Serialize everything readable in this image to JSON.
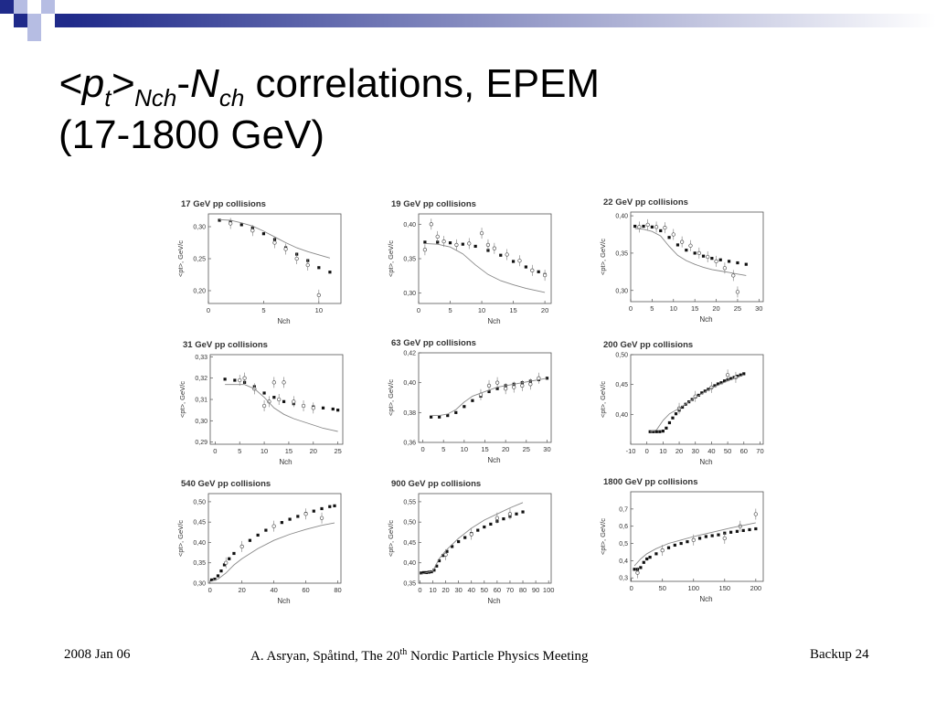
{
  "slide": {
    "title_open": "<",
    "title_p": "p",
    "title_sub_t": "t",
    "title_gt": ">",
    "title_sub_nch": "Nch",
    "title_dash": "-",
    "title_n": "N",
    "title_sub_ch": "ch",
    "title_rest": " correlations, EPEM",
    "title_line2": "(17-1800 GeV)"
  },
  "footer": {
    "date": "2008 Jan 06",
    "authors_a": "A. Asryan, Spåtind, The 20",
    "authors_sup": "th",
    "authors_b": " Nordic Particle Physics Meeting",
    "backup": "Backup 24"
  },
  "colors": {
    "accent": "#1f2a8a",
    "accent_light": "#b6bde3",
    "model": "#888888"
  },
  "chart_data": [
    {
      "type": "scatter",
      "title": "17 GeV pp collisions",
      "ylabel": "<pt>, GeV/c",
      "xlabel": "Nch",
      "xlim": [
        0,
        12
      ],
      "ylim": [
        0.18,
        0.32
      ],
      "xticks": [
        0,
        5,
        10
      ],
      "yticks": [
        0.2,
        0.25,
        0.3
      ],
      "yticklabels": [
        "0,20",
        "0,25",
        "0,30"
      ],
      "series": [
        {
          "kind": "dots",
          "x": [
            1,
            2,
            3,
            4,
            5,
            6,
            7,
            8,
            9,
            10,
            11
          ],
          "y": [
            0.31,
            0.307,
            0.303,
            0.298,
            0.289,
            0.28,
            0.267,
            0.257,
            0.247,
            0.236,
            0.229
          ]
        },
        {
          "kind": "points",
          "x": [
            2,
            4,
            6,
            7,
            8,
            9,
            10
          ],
          "y": [
            0.305,
            0.294,
            0.275,
            0.265,
            0.25,
            0.24,
            0.193
          ]
        },
        {
          "kind": "line",
          "x": [
            1,
            2,
            3,
            4,
            5,
            6,
            7,
            8,
            9,
            10,
            11
          ],
          "y": [
            0.311,
            0.31,
            0.306,
            0.301,
            0.293,
            0.284,
            0.275,
            0.267,
            0.261,
            0.256,
            0.251
          ]
        }
      ]
    },
    {
      "type": "scatter",
      "title": "19 GeV pp collisions",
      "ylabel": "<pt>, GeV/c",
      "xlabel": "Nch",
      "xlim": [
        0,
        21
      ],
      "ylim": [
        0.285,
        0.415
      ],
      "xticks": [
        0,
        5,
        10,
        15,
        20
      ],
      "yticks": [
        0.3,
        0.35,
        0.4
      ],
      "yticklabels": [
        "0,30",
        "0,35",
        "0,40"
      ],
      "series": [
        {
          "kind": "dots",
          "x": [
            1,
            3,
            5,
            7,
            9,
            11,
            13,
            15,
            17,
            19,
            20
          ],
          "y": [
            0.374,
            0.374,
            0.373,
            0.371,
            0.368,
            0.362,
            0.355,
            0.346,
            0.338,
            0.331,
            0.327
          ]
        },
        {
          "kind": "points",
          "x": [
            1,
            2,
            3,
            4,
            6,
            8,
            10,
            11,
            12,
            14,
            16,
            18,
            20
          ],
          "y": [
            0.363,
            0.4,
            0.382,
            0.375,
            0.37,
            0.372,
            0.387,
            0.37,
            0.365,
            0.356,
            0.347,
            0.333,
            0.326
          ]
        },
        {
          "kind": "line",
          "x": [
            1,
            3,
            5,
            7,
            9,
            11,
            13,
            15,
            17,
            19,
            20
          ],
          "y": [
            0.372,
            0.371,
            0.367,
            0.357,
            0.341,
            0.327,
            0.318,
            0.312,
            0.307,
            0.303,
            0.301
          ]
        }
      ]
    },
    {
      "type": "scatter",
      "title": "22 GeV pp collisions",
      "ylabel": "<pt>, GeV/c",
      "xlabel": "Nch",
      "xlim": [
        0,
        31
      ],
      "ylim": [
        0.285,
        0.405
      ],
      "xticks": [
        0,
        5,
        10,
        15,
        20,
        25,
        30
      ],
      "yticks": [
        0.3,
        0.35,
        0.4
      ],
      "yticklabels": [
        "0,30",
        "0,35",
        "0,40"
      ],
      "series": [
        {
          "kind": "dots",
          "x": [
            1,
            3,
            5,
            7,
            9,
            11,
            13,
            15,
            17,
            19,
            21,
            23,
            25,
            27
          ],
          "y": [
            0.386,
            0.386,
            0.385,
            0.38,
            0.371,
            0.361,
            0.354,
            0.35,
            0.346,
            0.343,
            0.341,
            0.339,
            0.337,
            0.335
          ]
        },
        {
          "kind": "points",
          "x": [
            2,
            4,
            6,
            8,
            10,
            12,
            14,
            16,
            18,
            20,
            22,
            24,
            25
          ],
          "y": [
            0.385,
            0.388,
            0.385,
            0.384,
            0.375,
            0.365,
            0.36,
            0.35,
            0.345,
            0.339,
            0.33,
            0.32,
            0.298
          ]
        },
        {
          "kind": "line",
          "x": [
            1,
            3,
            5,
            7,
            9,
            11,
            13,
            15,
            17,
            19,
            21,
            23,
            25,
            27
          ],
          "y": [
            0.383,
            0.382,
            0.379,
            0.373,
            0.359,
            0.347,
            0.34,
            0.335,
            0.331,
            0.328,
            0.326,
            0.324,
            0.322,
            0.32
          ]
        }
      ]
    },
    {
      "type": "scatter",
      "title": "31 GeV pp collisions",
      "ylabel": "<pt>, GeV/c",
      "xlabel": "Nch",
      "xlim": [
        -1,
        26
      ],
      "ylim": [
        0.289,
        0.331
      ],
      "xticks": [
        0,
        5,
        10,
        15,
        20,
        25
      ],
      "yticks": [
        0.29,
        0.3,
        0.31,
        0.32,
        0.33
      ],
      "yticklabels": [
        "0,29",
        "0,30",
        "0,31",
        "0,32",
        "0,33"
      ],
      "series": [
        {
          "kind": "dots",
          "x": [
            2,
            4,
            6,
            8,
            10,
            12,
            14,
            16,
            18,
            20,
            22,
            24,
            25
          ],
          "y": [
            0.3195,
            0.319,
            0.318,
            0.316,
            0.313,
            0.311,
            0.309,
            0.308,
            0.307,
            0.3065,
            0.306,
            0.3055,
            0.305
          ]
        },
        {
          "kind": "points",
          "x": [
            5,
            6,
            8,
            10,
            11,
            12,
            13,
            14,
            16,
            18,
            20
          ],
          "y": [
            0.319,
            0.32,
            0.315,
            0.307,
            0.309,
            0.318,
            0.31,
            0.318,
            0.309,
            0.307,
            0.306
          ]
        },
        {
          "kind": "line",
          "x": [
            2,
            4,
            6,
            8,
            10,
            12,
            14,
            16,
            18,
            20,
            22,
            24,
            25
          ],
          "y": [
            0.317,
            0.317,
            0.317,
            0.315,
            0.311,
            0.306,
            0.303,
            0.301,
            0.2995,
            0.298,
            0.2965,
            0.2955,
            0.295
          ]
        }
      ]
    },
    {
      "type": "scatter",
      "title": "63 GeV pp collisions",
      "ylabel": "<pt>, GeV/c",
      "xlabel": "Nch",
      "xlim": [
        -1,
        31
      ],
      "ylim": [
        0.36,
        0.42
      ],
      "xticks": [
        0,
        5,
        10,
        15,
        20,
        25,
        30
      ],
      "yticks": [
        0.36,
        0.38,
        0.4,
        0.42
      ],
      "yticklabels": [
        "0,36",
        "0,38",
        "0,40",
        "0,42"
      ],
      "series": [
        {
          "kind": "dots",
          "x": [
            2,
            4,
            6,
            8,
            10,
            12,
            14,
            16,
            18,
            20,
            22,
            24,
            26,
            28,
            30
          ],
          "y": [
            0.377,
            0.377,
            0.378,
            0.38,
            0.384,
            0.388,
            0.391,
            0.394,
            0.396,
            0.398,
            0.399,
            0.4,
            0.401,
            0.402,
            0.403
          ]
        },
        {
          "kind": "points",
          "x": [
            14,
            16,
            18,
            20,
            22,
            24,
            26,
            28
          ],
          "y": [
            0.392,
            0.398,
            0.4,
            0.396,
            0.397,
            0.398,
            0.399,
            0.403
          ]
        },
        {
          "kind": "line",
          "x": [
            2,
            4,
            6,
            8,
            10,
            12,
            14,
            16,
            18,
            20,
            22,
            24,
            26,
            28,
            30
          ],
          "y": [
            0.378,
            0.378,
            0.379,
            0.382,
            0.387,
            0.391,
            0.393,
            0.395,
            0.397,
            0.398,
            0.399,
            0.4,
            0.401,
            0.402,
            0.403
          ]
        }
      ]
    },
    {
      "type": "scatter",
      "title": "200 GeV pp collisions",
      "ylabel": "<pt>, GeV/c",
      "xlabel": "Nch",
      "xlim": [
        -10,
        72
      ],
      "ylim": [
        0.35,
        0.5
      ],
      "xticks": [
        -10,
        0,
        10,
        20,
        30,
        40,
        50,
        60,
        70
      ],
      "yticks": [
        0.4,
        0.45,
        0.5
      ],
      "yticklabels": [
        "0,40",
        "0,45",
        "0,50"
      ],
      "series": [
        {
          "kind": "dots",
          "x": [
            2,
            4,
            6,
            8,
            10,
            12,
            14,
            16,
            18,
            20,
            22,
            24,
            26,
            28,
            30,
            32,
            34,
            36,
            38,
            40,
            42,
            44,
            46,
            48,
            50,
            52,
            54,
            56,
            58,
            60
          ],
          "y": [
            0.371,
            0.371,
            0.371,
            0.371,
            0.372,
            0.377,
            0.386,
            0.394,
            0.401,
            0.407,
            0.412,
            0.417,
            0.421,
            0.425,
            0.429,
            0.432,
            0.436,
            0.439,
            0.442,
            0.445,
            0.448,
            0.451,
            0.453,
            0.456,
            0.458,
            0.46,
            0.462,
            0.464,
            0.466,
            0.468
          ]
        },
        {
          "kind": "points",
          "x": [
            20,
            30,
            40,
            50,
            55
          ],
          "y": [
            0.41,
            0.43,
            0.445,
            0.466,
            0.462
          ]
        },
        {
          "kind": "line",
          "x": [
            2,
            6,
            10,
            14,
            20,
            30,
            40,
            50,
            60
          ],
          "y": [
            0.371,
            0.374,
            0.39,
            0.401,
            0.41,
            0.428,
            0.444,
            0.456,
            0.466
          ]
        }
      ]
    },
    {
      "type": "scatter",
      "title": "540 GeV pp collisions",
      "ylabel": "<pt>, GeV/c",
      "xlabel": "Nch",
      "xlim": [
        -1,
        82
      ],
      "ylim": [
        0.3,
        0.52
      ],
      "xticks": [
        0,
        20,
        40,
        60,
        80
      ],
      "yticks": [
        0.3,
        0.35,
        0.4,
        0.45,
        0.5
      ],
      "yticklabels": [
        "0,30",
        "0,35",
        "0,40",
        "0,45",
        "0,50"
      ],
      "series": [
        {
          "kind": "dots",
          "x": [
            1,
            3,
            5,
            7,
            9,
            12,
            15,
            20,
            25,
            30,
            35,
            40,
            45,
            50,
            55,
            60,
            65,
            70,
            75,
            78
          ],
          "y": [
            0.308,
            0.31,
            0.318,
            0.33,
            0.345,
            0.36,
            0.373,
            0.39,
            0.405,
            0.418,
            0.43,
            0.44,
            0.449,
            0.457,
            0.464,
            0.471,
            0.477,
            0.483,
            0.488,
            0.49
          ]
        },
        {
          "kind": "points",
          "x": [
            10,
            20,
            40,
            60,
            70
          ],
          "y": [
            0.35,
            0.39,
            0.44,
            0.47,
            0.46
          ]
        },
        {
          "kind": "line",
          "x": [
            1,
            5,
            10,
            15,
            20,
            30,
            40,
            50,
            60,
            70,
            78
          ],
          "y": [
            0.305,
            0.31,
            0.325,
            0.345,
            0.36,
            0.385,
            0.405,
            0.42,
            0.432,
            0.442,
            0.448
          ]
        }
      ]
    },
    {
      "type": "scatter",
      "title": "900 GeV pp collisions",
      "ylabel": "<pt>, GeV/c",
      "xlabel": "Nch",
      "xlim": [
        -1,
        102
      ],
      "ylim": [
        0.35,
        0.57
      ],
      "xticks": [
        0,
        10,
        20,
        30,
        40,
        50,
        60,
        70,
        80,
        90,
        100
      ],
      "yticks": [
        0.35,
        0.4,
        0.45,
        0.5,
        0.55
      ],
      "yticklabels": [
        "0,35",
        "0,40",
        "0,45",
        "0,50",
        "0,55"
      ],
      "series": [
        {
          "kind": "dots",
          "x": [
            1,
            3,
            5,
            7,
            9,
            11,
            13,
            15,
            18,
            21,
            25,
            30,
            35,
            40,
            45,
            50,
            55,
            60,
            65,
            70,
            75,
            80
          ],
          "y": [
            0.375,
            0.376,
            0.376,
            0.377,
            0.378,
            0.382,
            0.392,
            0.405,
            0.418,
            0.428,
            0.44,
            0.452,
            0.462,
            0.472,
            0.48,
            0.488,
            0.495,
            0.502,
            0.508,
            0.514,
            0.52,
            0.525
          ]
        },
        {
          "kind": "points",
          "x": [
            20,
            40,
            60,
            70
          ],
          "y": [
            0.42,
            0.47,
            0.51,
            0.52
          ]
        },
        {
          "kind": "line",
          "x": [
            1,
            10,
            15,
            20,
            30,
            40,
            50,
            60,
            70,
            80
          ],
          "y": [
            0.372,
            0.38,
            0.41,
            0.43,
            0.46,
            0.485,
            0.505,
            0.52,
            0.535,
            0.548
          ]
        }
      ]
    },
    {
      "type": "scatter",
      "title": "1800 GeV pp collisions",
      "ylabel": "<pt>, GeV/c",
      "xlabel": "Nch",
      "xlim": [
        -1,
        212
      ],
      "ylim": [
        0.28,
        0.8
      ],
      "xticks": [
        0,
        50,
        100,
        150,
        200
      ],
      "yticks": [
        0.3,
        0.4,
        0.5,
        0.6,
        0.7
      ],
      "yticklabels": [
        "0,3",
        "0,4",
        "0,5",
        "0,6",
        "0,7"
      ],
      "series": [
        {
          "kind": "dots",
          "x": [
            5,
            10,
            15,
            20,
            25,
            30,
            40,
            50,
            60,
            70,
            80,
            90,
            100,
            110,
            120,
            130,
            140,
            150,
            160,
            170,
            180,
            190,
            200
          ],
          "y": [
            0.35,
            0.35,
            0.36,
            0.39,
            0.41,
            0.42,
            0.44,
            0.46,
            0.475,
            0.49,
            0.5,
            0.51,
            0.52,
            0.53,
            0.54,
            0.545,
            0.55,
            0.56,
            0.565,
            0.57,
            0.575,
            0.58,
            0.585
          ]
        },
        {
          "kind": "points",
          "x": [
            10,
            50,
            100,
            150,
            175,
            200
          ],
          "y": [
            0.33,
            0.46,
            0.52,
            0.53,
            0.6,
            0.67
          ]
        },
        {
          "kind": "line",
          "x": [
            5,
            15,
            25,
            40,
            60,
            80,
            100,
            130,
            160,
            200
          ],
          "y": [
            0.37,
            0.41,
            0.44,
            0.47,
            0.5,
            0.52,
            0.54,
            0.565,
            0.59,
            0.62
          ]
        }
      ]
    }
  ]
}
